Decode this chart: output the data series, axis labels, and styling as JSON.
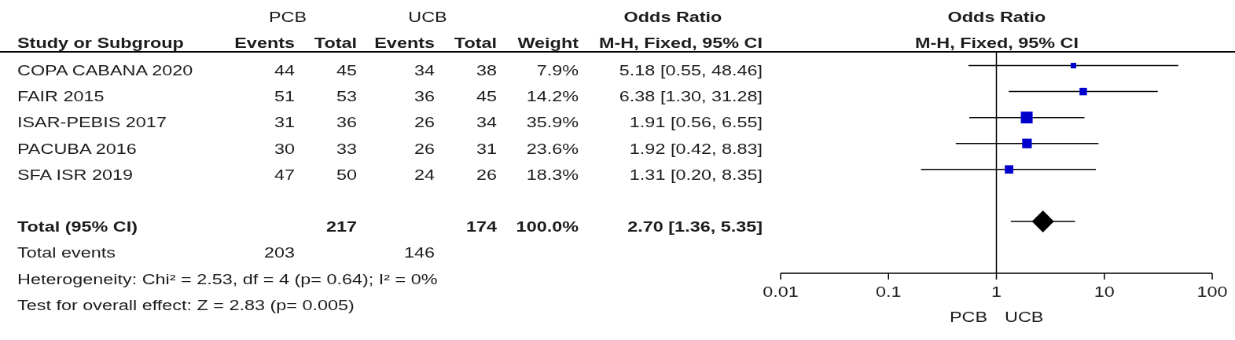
{
  "chart_data": [
    {
      "type": "other",
      "ylabel": "Study or Subgroup",
      "categories": [
        "COPA CABANA 2020",
        "FAIR 2015",
        "ISAR-PEBIS 2017",
        "PACUBA 2016",
        "SFA ISR 2019",
        null,
        "Total (95% CI)",
        "Total events"
      ],
      "series": [
        {
          "name": "Events",
          "values": [
            44,
            51,
            31,
            30,
            47,
            null,
            null,
            203
          ]
        },
        {
          "name": "Total",
          "values": [
            45,
            53,
            36,
            33,
            50,
            null,
            217,
            null
          ]
        },
        {
          "name": "Events",
          "values": [
            34,
            36,
            26,
            26,
            24,
            null,
            null,
            146
          ]
        },
        {
          "name": "Total",
          "values": [
            38,
            45,
            34,
            31,
            26,
            null,
            174,
            null
          ]
        },
        {
          "name": "Weight",
          "values": [
            7.9,
            14.2,
            35.9,
            23.6,
            18.3,
            null,
            100.0,
            null
          ],
          "value_labels": [
            "7.9%",
            "14.2%",
            "35.9%",
            "23.6%",
            "18.3%",
            null,
            "100.0%",
            null
          ]
        },
        {
          "name": "M-H, Fixed, 95% CI",
          "values": [
            5.18,
            6.38,
            1.91,
            1.92,
            1.31,
            null,
            2.7,
            null
          ],
          "value_labels": [
            "5.18 [0.55, 48.46]",
            "6.38 [1.30, 31.28]",
            "1.91 [0.56, 6.55]",
            "1.92 [0.42, 8.83]",
            "1.31 [0.20, 8.35]",
            null,
            "2.70 [1.36, 5.35]",
            null
          ]
        }
      ],
      "data_labels": true,
      "annotations": [
        "PCB",
        "UCB",
        "Odds Ratio",
        "Heterogeneity: Chi² = 2.53, df = 4 (p= 0.64); I² = 0%",
        "Test for overall effect: Z = 2.83 (p= 0.005)"
      ]
    },
    {
      "type": "scatter",
      "title": "Odds Ratio",
      "subtitle": "M-H, Fixed, 95% CI",
      "orientation": "horizontal",
      "categories": [
        null,
        null,
        null,
        null,
        null,
        null,
        null,
        null
      ],
      "tick_labels": "x",
      "log": "x",
      "xlim": [
        0.01,
        100
      ],
      "xticks": [
        0.01,
        0.1,
        1,
        10,
        100
      ],
      "series": [
        {
          "type": "bubble",
          "marker": "square",
          "color": "#0000cc",
          "values": [
            5.18,
            6.38,
            1.91,
            1.92,
            1.31,
            null,
            null,
            null
          ],
          "errors": [
            [
              0.55,
              48.46
            ],
            [
              1.3,
              31.28
            ],
            [
              0.56,
              6.55
            ],
            [
              0.42,
              8.83
            ],
            [
              0.2,
              8.35
            ],
            null,
            null,
            null
          ],
          "sizes": [
            0.22,
            0.4,
            1,
            0.66,
            0.51,
            null,
            null,
            null
          ]
        },
        {
          "type": "scatter",
          "marker": "diamond",
          "color": "#000000",
          "values": [
            null,
            null,
            null,
            null,
            null,
            null,
            2.7,
            null
          ],
          "errors": [
            null,
            null,
            null,
            null,
            null,
            null,
            [
              1.36,
              5.35
            ],
            null
          ]
        }
      ],
      "ref_lines": [
        {
          "axis": "x",
          "value": 1
        }
      ],
      "annotations": [
        "PCB",
        "UCB"
      ]
    }
  ]
}
